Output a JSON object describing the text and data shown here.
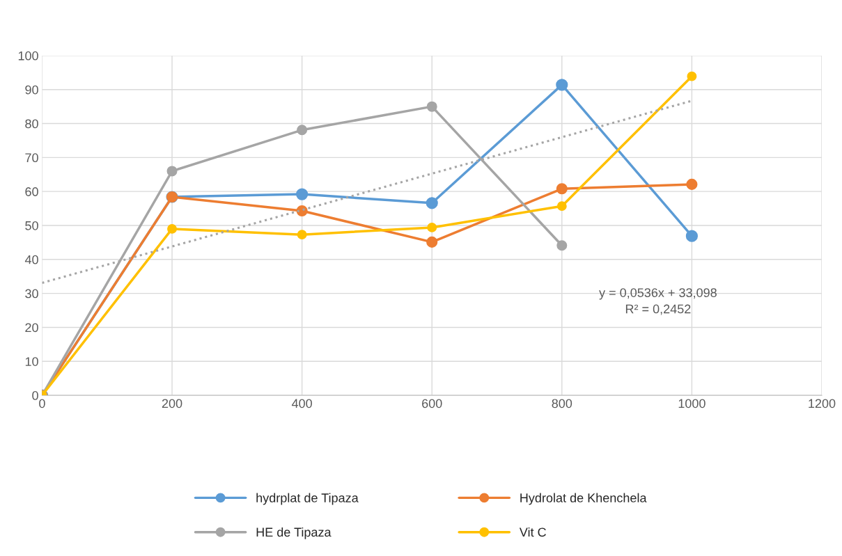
{
  "chart_data": {
    "type": "line",
    "x": [
      0,
      200,
      400,
      600,
      800,
      1000
    ],
    "series": [
      {
        "name": "hydrplat de Tipaza",
        "color": "#5b9bd5",
        "values": [
          0,
          58.4,
          59.2,
          56.6,
          91.4,
          46.9
        ]
      },
      {
        "name": "Hydrolat de Khenchela",
        "color": "#ed7d31",
        "values": [
          0,
          58.4,
          54.3,
          45.1,
          60.8,
          62.1
        ]
      },
      {
        "name": "HE de Tipaza",
        "color": "#a5a5a5",
        "values": [
          0,
          66.0,
          78.1,
          85.0,
          44.1,
          null
        ]
      },
      {
        "name": "Vit C",
        "color": "#ffc000",
        "values": [
          0,
          49.0,
          47.3,
          49.4,
          55.7,
          93.9
        ]
      },
      {
        "type": "line",
        "color": "#a5a5a5",
        "x": [
          0,
          1000
        ],
        "values": [
          33.1,
          86.7
        ],
        "line_style": "dotted",
        "marker": "none"
      }
    ],
    "xlim": [
      0,
      1200
    ],
    "xticks": [
      0,
      200,
      400,
      600,
      800,
      1000,
      1200
    ],
    "ylim": [
      0,
      100
    ],
    "yticks": [
      0,
      10,
      20,
      30,
      40,
      50,
      60,
      70,
      80,
      90,
      100
    ],
    "grid": true,
    "legend": "bottom",
    "marker": "circle",
    "line_style": "solid",
    "annotations": [
      "y = 0,0536x + 33,098\nR² = 0,2452"
    ]
  }
}
